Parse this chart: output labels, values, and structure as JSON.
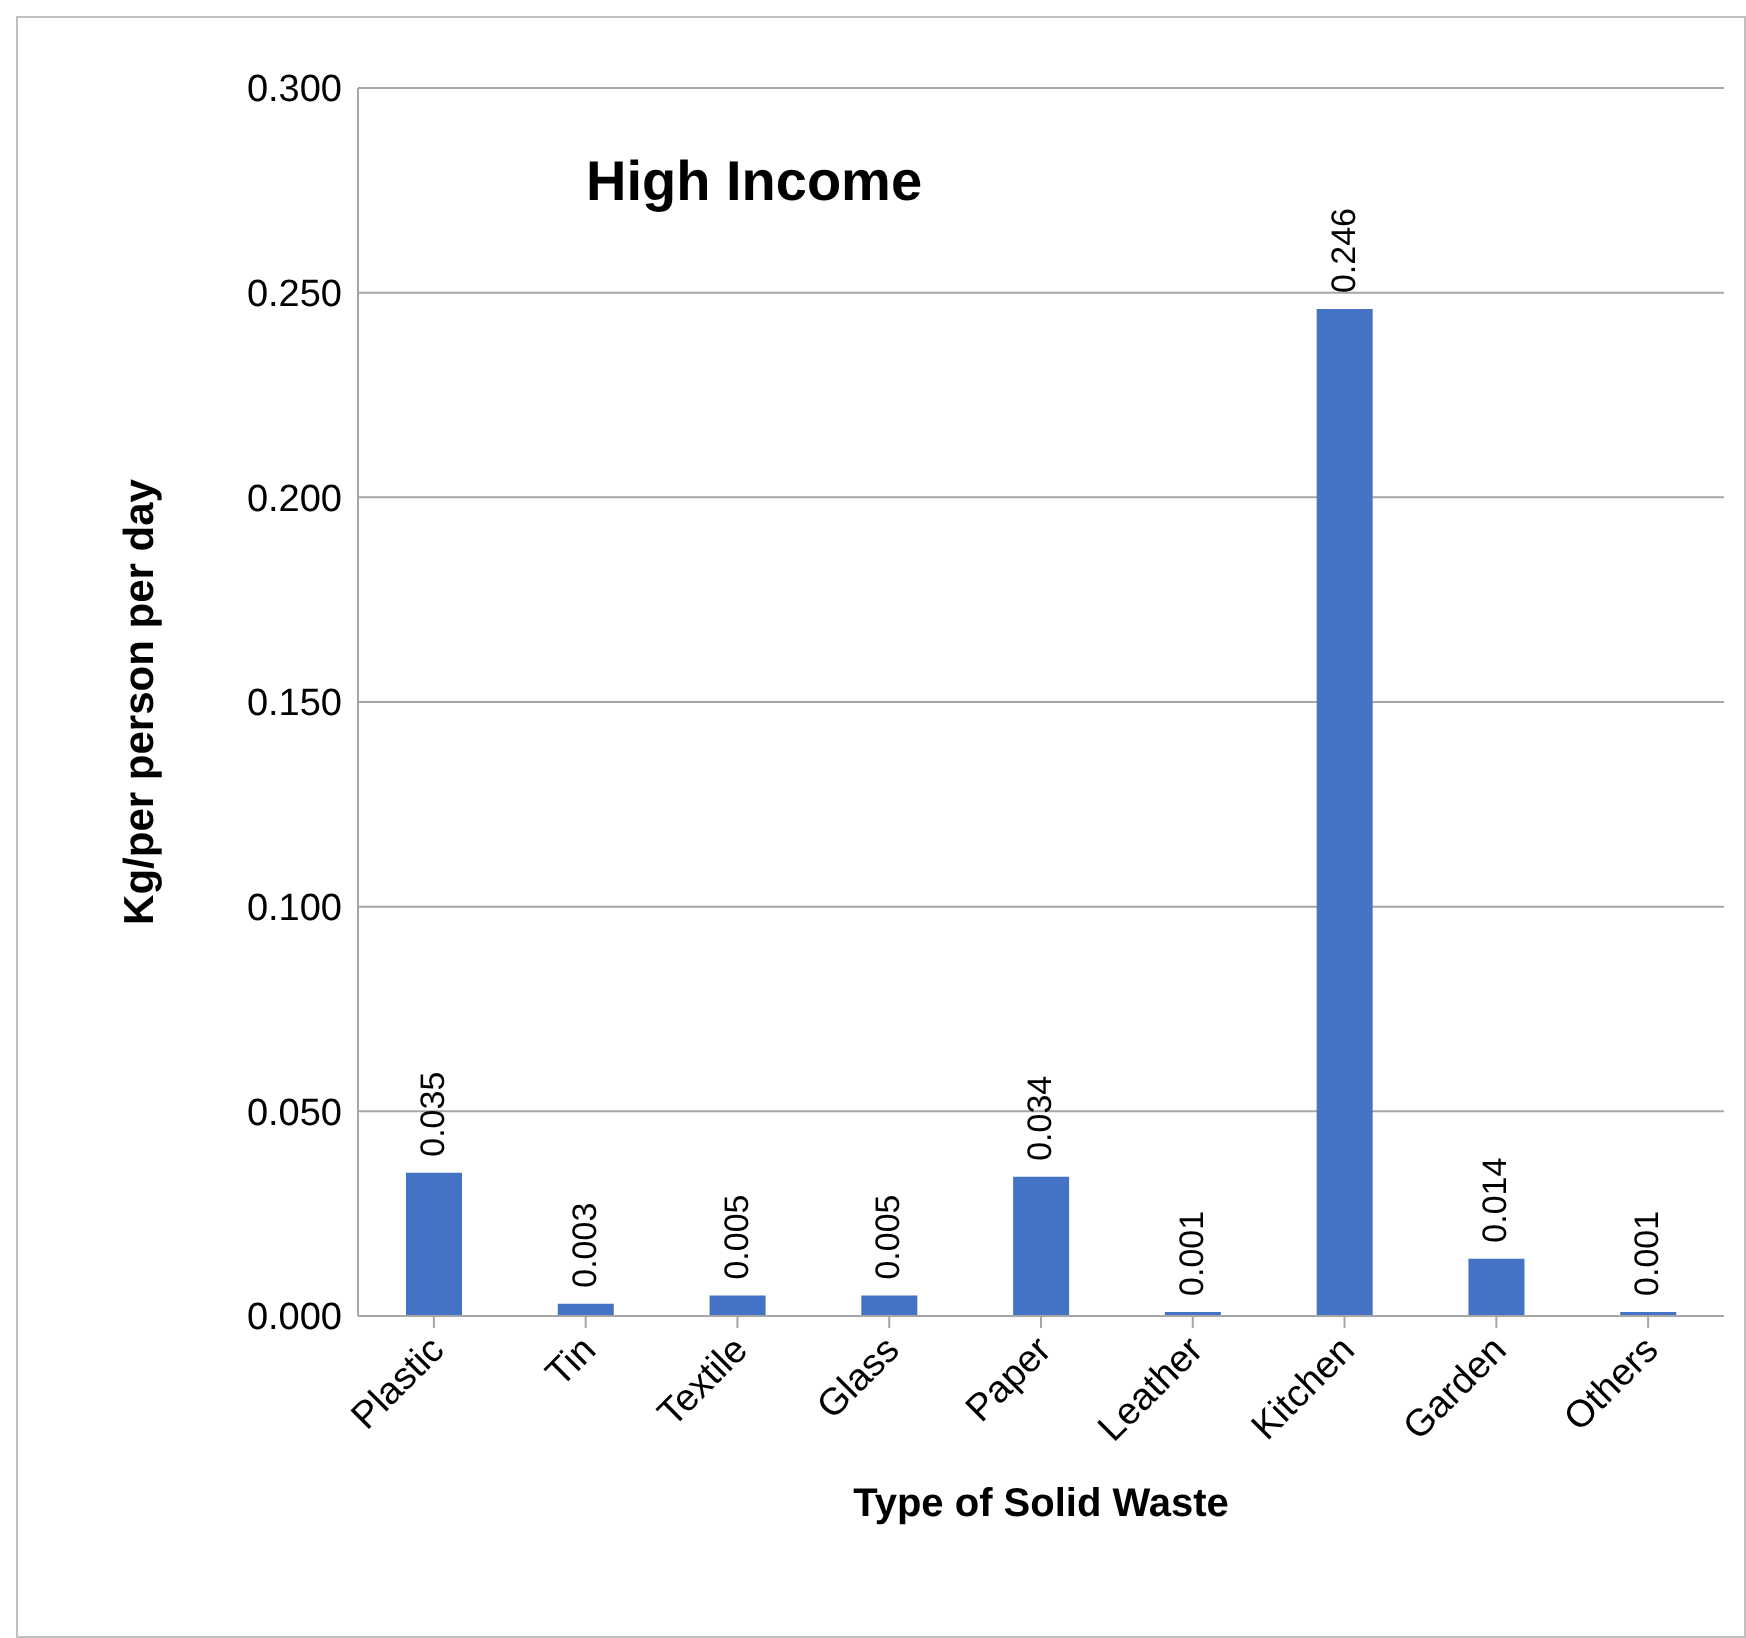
{
  "chart_data": {
    "type": "bar",
    "title": "High Income",
    "xlabel": "Type of Solid Waste",
    "ylabel": "Kg/per person per day",
    "categories": [
      "Plastic",
      "Tin",
      "Textile",
      "Glass",
      "Paper",
      "Leather",
      "Kitchen",
      "Garden",
      "Others"
    ],
    "values": [
      0.035,
      0.003,
      0.005,
      0.005,
      0.034,
      0.001,
      0.246,
      0.014,
      0.001
    ],
    "color": "#4472c4",
    "ylim": [
      0,
      0.3
    ],
    "yticks": [
      {
        "value": 0,
        "label": "0.000"
      },
      {
        "value": 0.05,
        "label": "0.050"
      },
      {
        "value": 0.1,
        "label": "0.100"
      },
      {
        "value": 0.15,
        "label": "0.150"
      },
      {
        "value": 0.2,
        "label": "0.200"
      },
      {
        "value": 0.25,
        "label": "0.250"
      },
      {
        "value": 0.3,
        "label": "0.300"
      }
    ],
    "grid": "y",
    "data_labels": true
  }
}
